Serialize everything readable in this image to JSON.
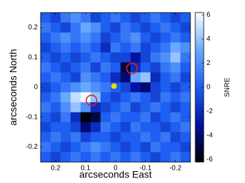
{
  "chart_data": {
    "type": "heatmap",
    "xlabel": "arcseconds East",
    "ylabel": "arcseconds North",
    "colorbar_label": "SNRE",
    "xlim": [
      0.25,
      -0.25
    ],
    "ylim": [
      -0.25,
      0.25
    ],
    "xticks": [
      0.2,
      0.1,
      0,
      -0.1,
      -0.2
    ],
    "yticks": [
      -0.2,
      -0.1,
      0,
      0.1,
      0.2
    ],
    "zlim": [
      -6.2,
      6.2
    ],
    "zticks": [
      -6,
      -4,
      -2,
      0,
      2,
      4,
      6
    ],
    "colormap": [
      "#000000",
      "#0010a0",
      "#1e5ef0",
      "#6aaaff",
      "#ffffff"
    ],
    "z": [
      [
        0,
        -1,
        1,
        2,
        1,
        -1,
        0,
        1,
        0,
        -1,
        0,
        1,
        0,
        -1,
        0
      ],
      [
        1,
        0,
        -1,
        1,
        3,
        2,
        0,
        -1,
        1,
        0,
        -1,
        0,
        1,
        0,
        -1
      ],
      [
        0,
        1,
        2,
        1,
        2,
        1,
        -1,
        0,
        1,
        2,
        0,
        -1,
        0,
        1,
        0
      ],
      [
        -1,
        0,
        1,
        0,
        1,
        0,
        -2,
        1,
        0,
        1,
        -1,
        0,
        1,
        3,
        2
      ],
      [
        0,
        -1,
        0,
        -1,
        0,
        1,
        0,
        -1,
        -1,
        -3,
        -1,
        1,
        2,
        4,
        1
      ],
      [
        1,
        0,
        -1,
        0,
        1,
        -1,
        1,
        0,
        -5,
        -2,
        0,
        -1,
        1,
        2,
        0
      ],
      [
        0,
        1,
        0,
        -1,
        2,
        1,
        0,
        -2,
        -4,
        3,
        4,
        -2,
        0,
        1,
        -1
      ],
      [
        -1,
        0,
        1,
        2,
        3,
        2,
        1,
        0,
        -1,
        -3,
        -4,
        -1,
        0,
        -1,
        0
      ],
      [
        0,
        1,
        3,
        5,
        6,
        4,
        0,
        -1,
        0,
        1,
        0,
        -1,
        1,
        0,
        1
      ],
      [
        1,
        0,
        2,
        4,
        2,
        -2,
        -1,
        0,
        1,
        -1,
        0,
        1,
        0,
        -1,
        0
      ],
      [
        0,
        -1,
        1,
        -2,
        -6,
        -5,
        0,
        1,
        0,
        0,
        1,
        -1,
        0,
        1,
        0
      ],
      [
        -1,
        0,
        0,
        -1,
        -4,
        -2,
        1,
        0,
        -1,
        1,
        0,
        0,
        -1,
        0,
        1
      ],
      [
        0,
        1,
        0,
        1,
        -1,
        0,
        0,
        -1,
        0,
        0,
        1,
        0,
        1,
        -1,
        0
      ],
      [
        1,
        0,
        -1,
        0,
        1,
        2,
        1,
        0,
        -1,
        0,
        -1,
        1,
        0,
        0,
        -1
      ],
      [
        0,
        -1,
        0,
        1,
        0,
        1,
        0,
        1,
        0,
        1,
        0,
        -1,
        0,
        1,
        0
      ]
    ],
    "markers": [
      {
        "x": -0.055,
        "y": 0.063,
        "color": "#e02020",
        "style": "ring"
      },
      {
        "x": 0.08,
        "y": -0.044,
        "color": "#e02020",
        "style": "ring"
      },
      {
        "x": 0.005,
        "y": 0.004,
        "color": "#e8e000",
        "style": "dot"
      }
    ]
  }
}
